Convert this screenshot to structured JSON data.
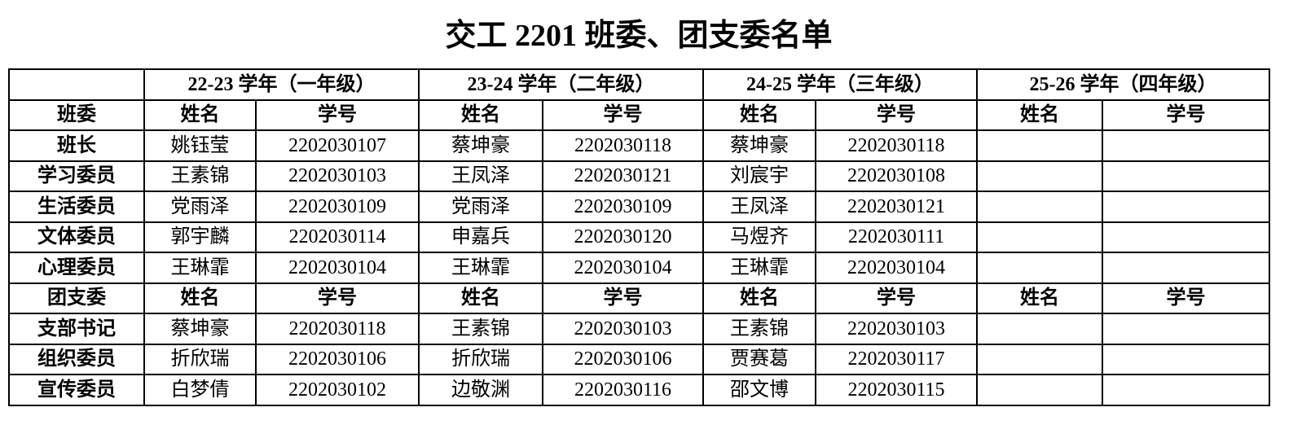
{
  "title": "交工 2201 班委、团支委名单",
  "years": [
    "22-23 学年（一年级）",
    "23-24 学年（二年级）",
    "24-25 学年（三年级）",
    "25-26 学年（四年级）"
  ],
  "sections": [
    {
      "label": "班委",
      "name_header": "姓名",
      "id_header": "学号",
      "rows": [
        {
          "role": "班长",
          "cells": [
            [
              "姚钰莹",
              "2202030107"
            ],
            [
              "蔡坤豪",
              "2202030118"
            ],
            [
              "蔡坤豪",
              "2202030118"
            ],
            [
              "",
              ""
            ]
          ]
        },
        {
          "role": "学习委员",
          "cells": [
            [
              "王素锦",
              "2202030103"
            ],
            [
              "王凤泽",
              "2202030121"
            ],
            [
              "刘宸宇",
              "2202030108"
            ],
            [
              "",
              ""
            ]
          ]
        },
        {
          "role": "生活委员",
          "cells": [
            [
              "党雨泽",
              "2202030109"
            ],
            [
              "党雨泽",
              "2202030109"
            ],
            [
              "王凤泽",
              "2202030121"
            ],
            [
              "",
              ""
            ]
          ]
        },
        {
          "role": "文体委员",
          "cells": [
            [
              "郭宇麟",
              "2202030114"
            ],
            [
              "申嘉兵",
              "2202030120"
            ],
            [
              "马煜齐",
              "2202030111"
            ],
            [
              "",
              ""
            ]
          ]
        },
        {
          "role": "心理委员",
          "cells": [
            [
              "王琳霏",
              "2202030104"
            ],
            [
              "王琳霏",
              "2202030104"
            ],
            [
              "王琳霏",
              "2202030104"
            ],
            [
              "",
              ""
            ]
          ]
        }
      ]
    },
    {
      "label": "团支委",
      "name_header": "姓名",
      "id_header": "学号",
      "rows": [
        {
          "role": "支部书记",
          "cells": [
            [
              "蔡坤豪",
              "2202030118"
            ],
            [
              "王素锦",
              "2202030103"
            ],
            [
              "王素锦",
              "2202030103"
            ],
            [
              "",
              ""
            ]
          ]
        },
        {
          "role": "组织委员",
          "cells": [
            [
              "折欣瑞",
              "2202030106"
            ],
            [
              "折欣瑞",
              "2202030106"
            ],
            [
              "贾赛葛",
              "2202030117"
            ],
            [
              "",
              ""
            ]
          ]
        },
        {
          "role": "宣传委员",
          "cells": [
            [
              "白梦倩",
              "2202030102"
            ],
            [
              "边敬渊",
              "2202030116"
            ],
            [
              "邵文博",
              "2202030115"
            ],
            [
              "",
              ""
            ]
          ]
        }
      ]
    }
  ]
}
